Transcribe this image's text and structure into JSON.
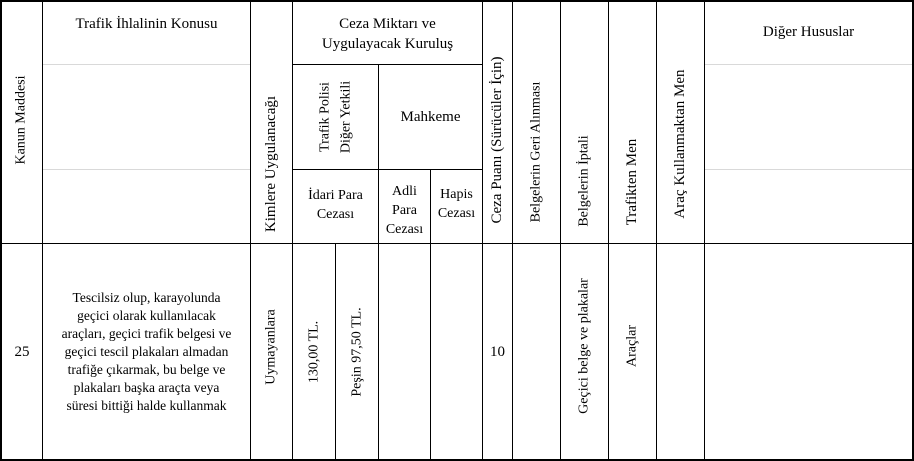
{
  "headers": {
    "article": "Kanun Maddesi",
    "subject": "Trafik İhlalinin Konusu",
    "applies_to": "Kimlere Uygulanacağı",
    "penalty_group": "Ceza Miktarı ve Uygulayacak Kuruluş",
    "traffic_police": "Trafik Polisi Diğer Yetkili",
    "court": "Mahkeme",
    "admin_fine": "İdari Para Cezası",
    "judicial_fine": "Adli Para Cezası",
    "prison": "Hapis Cezası",
    "penalty_points": "Ceza Puanı (Sürücüler İçin)",
    "doc_seizure": "Belgelerin Geri Alınması",
    "doc_cancel": "Belgelerin İptali",
    "traffic_ban": "Trafikten Men",
    "vehicle_ban": "Araç Kullanmaktan Men",
    "other": "Diğer Hususlar"
  },
  "row": {
    "article": "25",
    "subject": "Tescilsiz olup, karayolunda geçici olarak kullanılacak araçları, geçici trafik belgesi ve geçici tescil plakaları almadan trafiğe çıkarmak, bu belge ve plakaları başka araçta veya süresi bittiği halde kullanmak",
    "applies_to": "Uymayanlara",
    "admin_fine": "130,00 TL.",
    "admin_fine_prepaid": "Peşin 97,50 TL.",
    "judicial_fine": "",
    "prison": "",
    "penalty_points": "10",
    "doc_seizure": "",
    "doc_cancel": "Geçici belge ve plakalar",
    "traffic_ban": "Araçlar",
    "vehicle_ban": "",
    "other": ""
  }
}
